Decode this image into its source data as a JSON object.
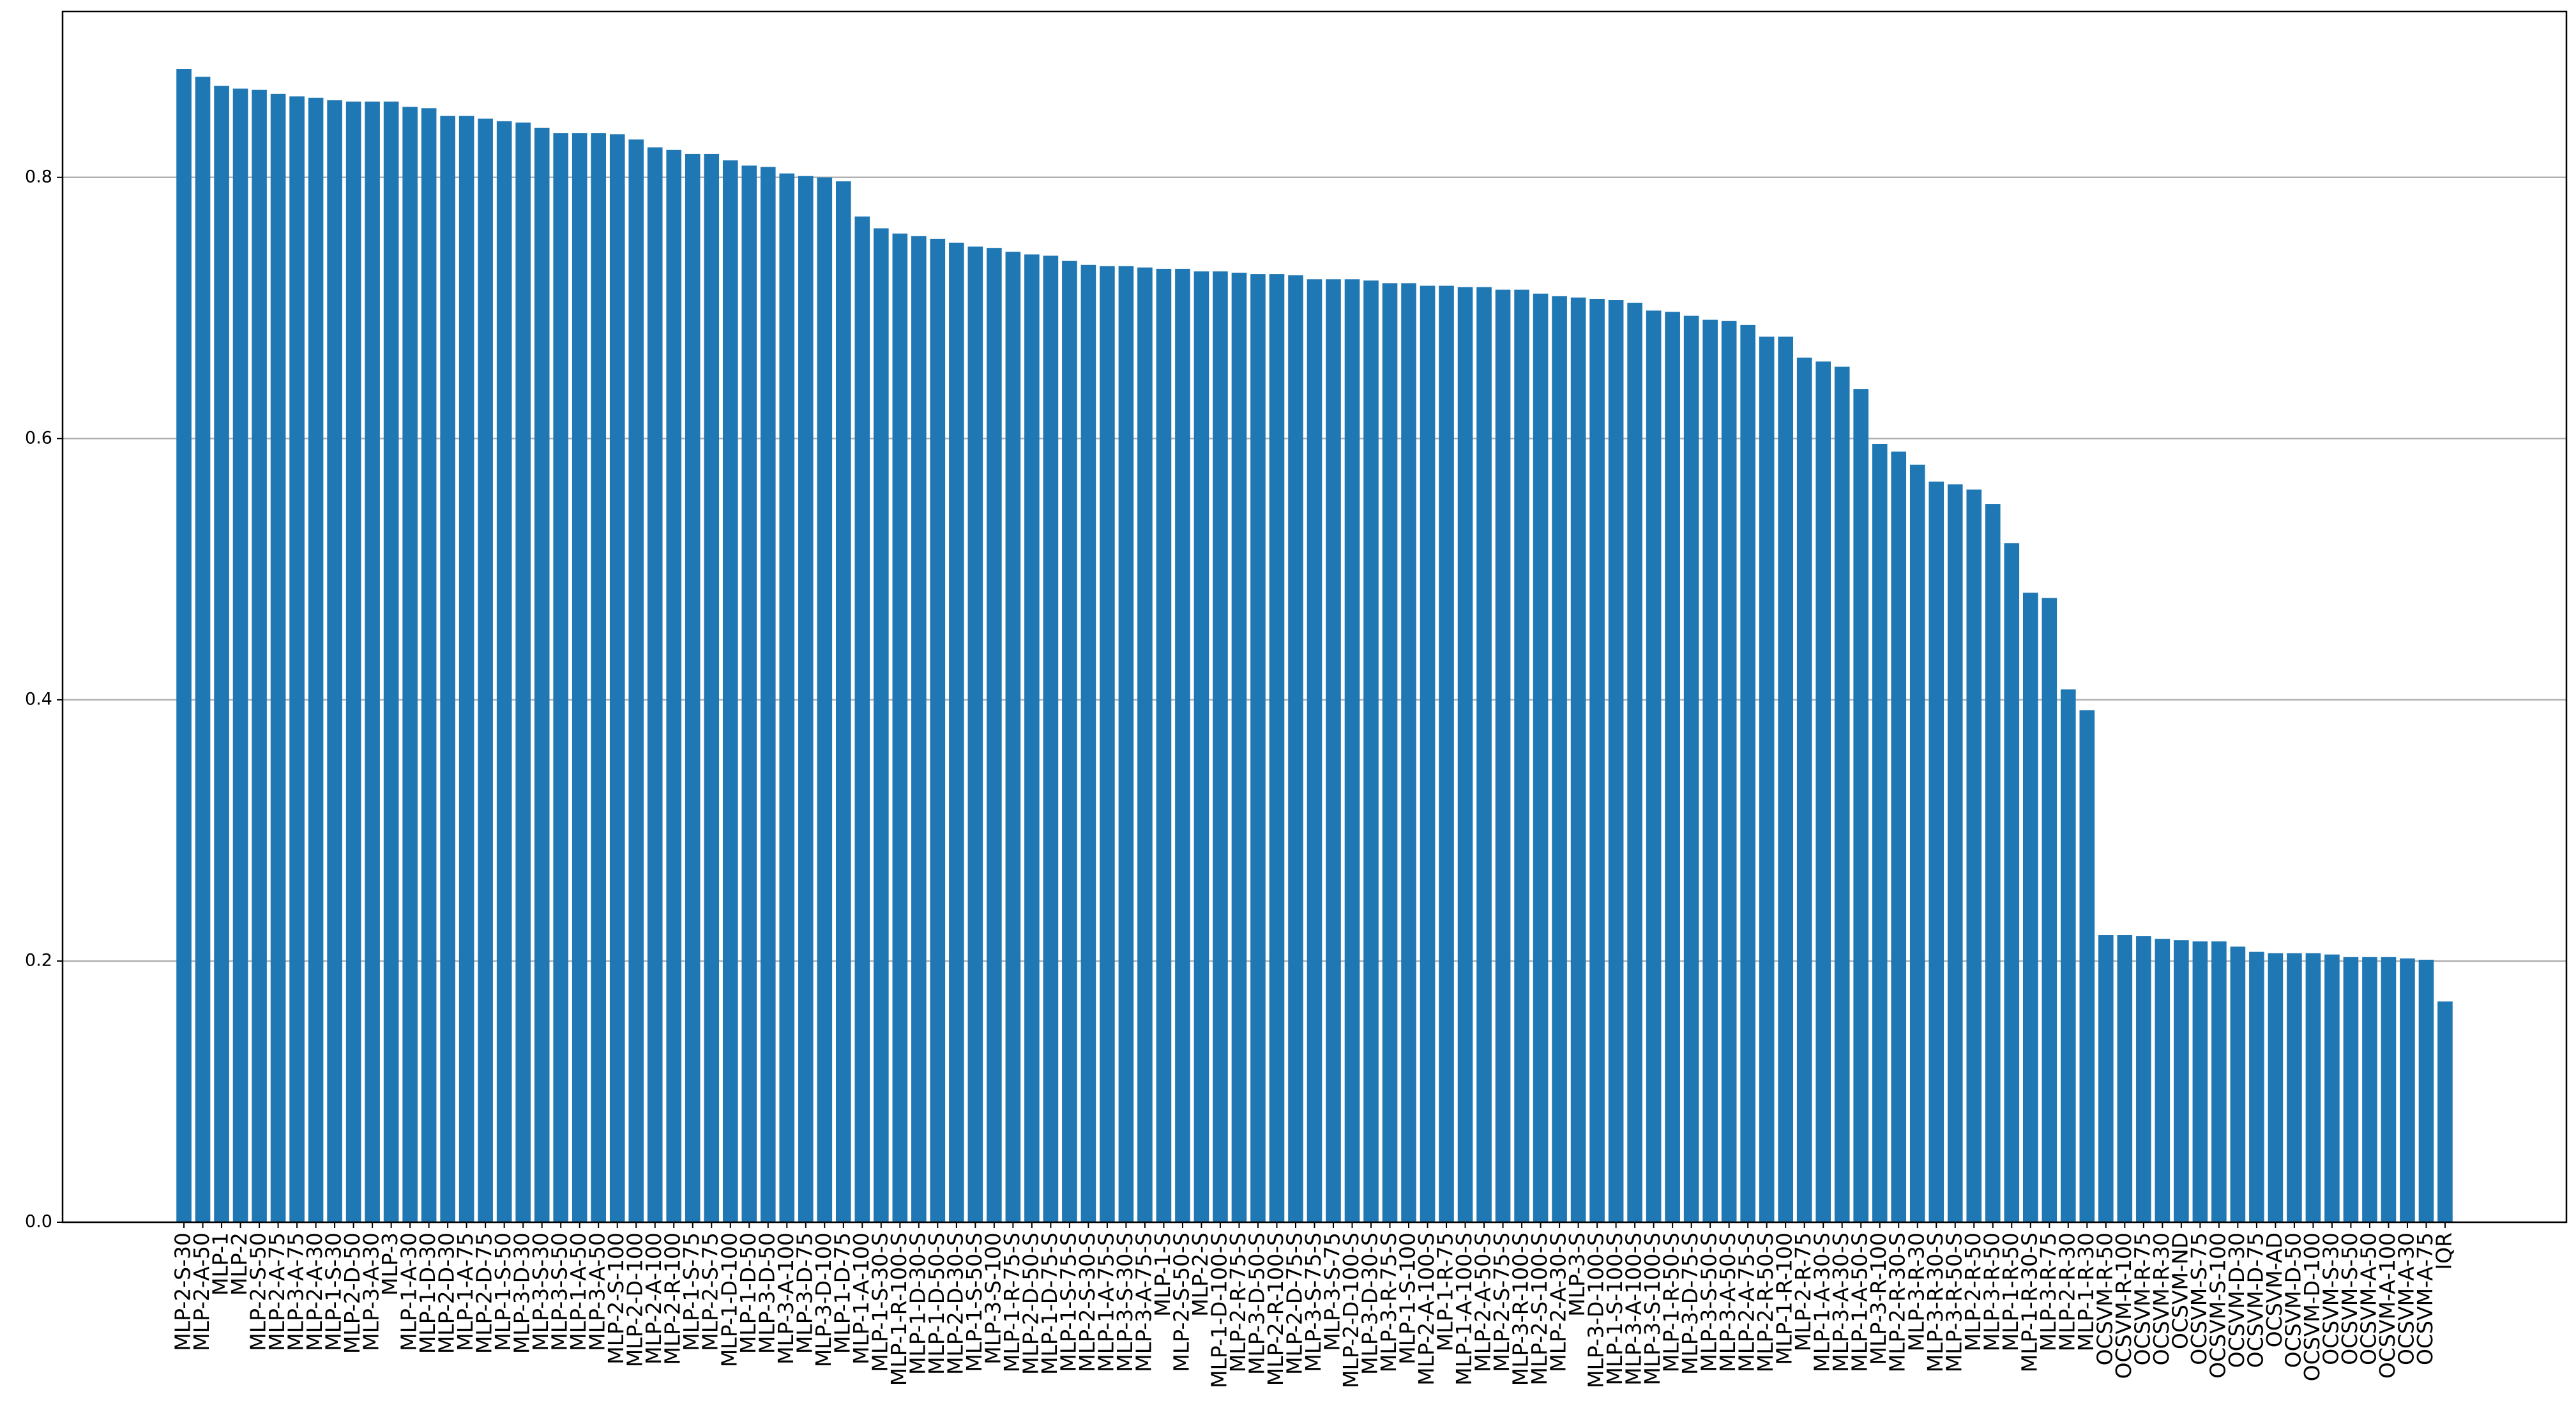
{
  "chart_data": {
    "type": "bar",
    "color": "#1f77b4",
    "grid": true,
    "categories": [
      "MLP-2-S-30",
      "MLP-2-A-50",
      "MLP-1",
      "MLP-2",
      "MLP-2-S-50",
      "MLP-2-A-75",
      "MLP-3-A-75",
      "MLP-2-A-30",
      "MLP-1-S-30",
      "MLP-2-D-50",
      "MLP-3-A-30",
      "MLP-3",
      "MLP-1-A-30",
      "MLP-1-D-30",
      "MLP-2-D-30",
      "MLP-1-A-75",
      "MLP-2-D-75",
      "MLP-1-S-50",
      "MLP-3-D-30",
      "MLP-3-S-30",
      "MLP-3-S-50",
      "MLP-1-A-50",
      "MLP-3-A-50",
      "MLP-2-S-100",
      "MLP-2-D-100",
      "MLP-2-A-100",
      "MLP-2-R-100",
      "MLP-1-S-75",
      "MLP-2-S-75",
      "MLP-1-D-100",
      "MLP-1-D-50",
      "MLP-3-D-50",
      "MLP-3-A-100",
      "MLP-3-D-75",
      "MLP-3-D-100",
      "MLP-1-D-75",
      "MLP-1-A-100",
      "MLP-1-S-30-S",
      "MLP-1-R-100-S",
      "MLP-1-D-30-S",
      "MLP-1-D-50-S",
      "MLP-2-D-30-S",
      "MLP-1-S-50-S",
      "MLP-3-S-100",
      "MLP-1-R-75-S",
      "MLP-2-D-50-S",
      "MLP-1-D-75-S",
      "MLP-1-S-75-S",
      "MLP-2-S-30-S",
      "MLP-1-A-75-S",
      "MLP-3-S-30-S",
      "MLP-3-A-75-S",
      "MLP-1-S",
      "MLP-2-S-50-S",
      "MLP-2-S",
      "MLP-1-D-100-S",
      "MLP-2-R-75-S",
      "MLP-3-D-50-S",
      "MLP-2-R-100-S",
      "MLP-2-D-75-S",
      "MLP-3-S-75-S",
      "MLP-3-S-75",
      "MLP-2-D-100-S",
      "MLP-3-D-30-S",
      "MLP-3-R-75-S",
      "MLP-1-S-100",
      "MLP-2-A-100-S",
      "MLP-1-R-75",
      "MLP-1-A-100-S",
      "MLP-2-A-50-S",
      "MLP-2-S-75-S",
      "MLP-3-R-100-S",
      "MLP-2-S-100-S",
      "MLP-2-A-30-S",
      "MLP-3-S",
      "MLP-3-D-100-S",
      "MLP-1-S-100-S",
      "MLP-3-A-100-S",
      "MLP-3-S-100-S",
      "MLP-1-R-50-S",
      "MLP-3-D-75-S",
      "MLP-3-S-50-S",
      "MLP-3-A-50-S",
      "MLP-2-A-75-S",
      "MLP-2-R-50-S",
      "MLP-1-R-100",
      "MLP-2-R-75",
      "MLP-1-A-30-S",
      "MLP-3-A-30-S",
      "MLP-1-A-50-S",
      "MLP-3-R-100",
      "MLP-2-R-30-S",
      "MLP-3-R-30",
      "MLP-3-R-30-S",
      "MLP-3-R-50-S",
      "MLP-2-R-50",
      "MLP-3-R-50",
      "MLP-1-R-50",
      "MLP-1-R-30-S",
      "MLP-3-R-75",
      "MLP-2-R-30",
      "MLP-1-R-30",
      "OCSVM-R-50",
      "OCSVM-R-100",
      "OCSVM-R-75",
      "OCSVM-R-30",
      "OCSVM-ND",
      "OCSVM-S-75",
      "OCSVM-S-100",
      "OCSVM-D-30",
      "OCSVM-D-75",
      "OCSVM-AD",
      "OCSVM-D-50",
      "OCSVM-D-100",
      "OCSVM-S-30",
      "OCSVM-S-50",
      "OCSVM-A-50",
      "OCSVM-A-100",
      "OCSVM-A-30",
      "OCSVM-A-75",
      "IQR"
    ],
    "values": [
      0.883,
      0.877,
      0.87,
      0.868,
      0.867,
      0.864,
      0.862,
      0.861,
      0.859,
      0.858,
      0.858,
      0.858,
      0.854,
      0.853,
      0.847,
      0.847,
      0.845,
      0.843,
      0.842,
      0.838,
      0.834,
      0.834,
      0.834,
      0.833,
      0.829,
      0.823,
      0.821,
      0.818,
      0.818,
      0.813,
      0.809,
      0.808,
      0.803,
      0.801,
      0.8,
      0.797,
      0.77,
      0.761,
      0.757,
      0.755,
      0.753,
      0.75,
      0.747,
      0.746,
      0.743,
      0.741,
      0.74,
      0.736,
      0.733,
      0.732,
      0.732,
      0.731,
      0.73,
      0.73,
      0.728,
      0.728,
      0.727,
      0.726,
      0.726,
      0.725,
      0.722,
      0.722,
      0.722,
      0.721,
      0.719,
      0.719,
      0.717,
      0.717,
      0.716,
      0.716,
      0.714,
      0.714,
      0.711,
      0.709,
      0.708,
      0.707,
      0.706,
      0.704,
      0.698,
      0.697,
      0.694,
      0.691,
      0.69,
      0.687,
      0.678,
      0.678,
      0.662,
      0.659,
      0.655,
      0.638,
      0.596,
      0.59,
      0.58,
      0.567,
      0.565,
      0.561,
      0.55,
      0.52,
      0.482,
      0.478,
      0.408,
      0.392,
      0.22,
      0.22,
      0.219,
      0.217,
      0.216,
      0.215,
      0.215,
      0.211,
      0.207,
      0.206,
      0.206,
      0.206,
      0.205,
      0.203,
      0.203,
      0.203,
      0.202,
      0.201,
      0.169
    ],
    "ylim": [
      0,
      0.927
    ],
    "yticks": [
      {
        "value": 0,
        "label": "0.0"
      },
      0.2,
      0.4,
      0.6,
      0.8
    ]
  }
}
